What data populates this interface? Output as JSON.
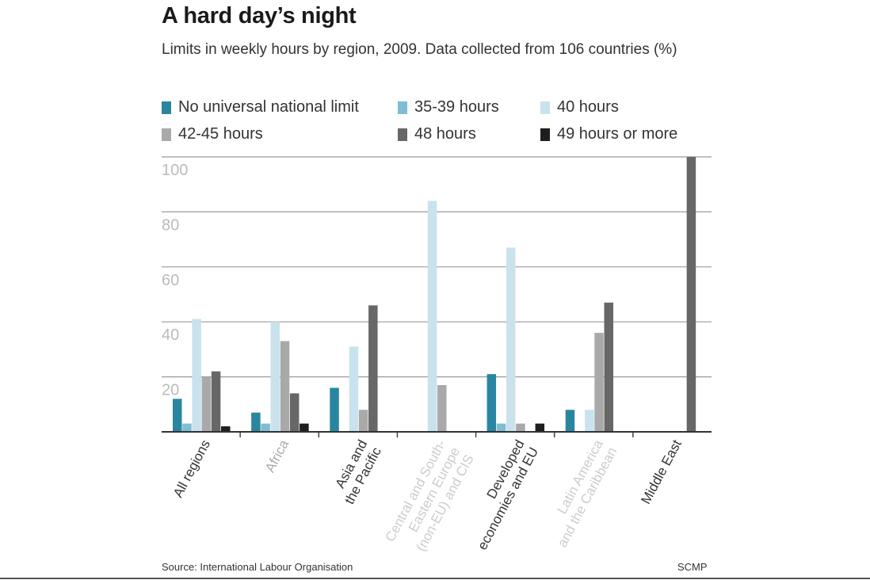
{
  "title": "A hard day’s night",
  "subtitle": "Limits in weekly hours by region, 2009. Data collected from 106 countries (%)",
  "source": "Source: International Labour Organisation",
  "credit": "SCMP",
  "chart_data": {
    "type": "bar",
    "title": "A hard day’s night",
    "subtitle": "Limits in weekly hours by region, 2009. Data collected from 106 countries (%)",
    "categories": [
      "All regions",
      "Africa",
      "Asia and\nthe Pacific",
      "Central and South-\nEastern Europe\n(non-EU) and CIS",
      "Developed\neconomies and EU",
      "Latin America\nand the Caribbean",
      "Middle East"
    ],
    "category_colors": [
      "#333333",
      "#aaaaaa",
      "#333333",
      "#cccccc",
      "#333333",
      "#cccccc",
      "#333333"
    ],
    "series": [
      {
        "name": "No universal national limit",
        "color": "#2a86a0",
        "values": [
          12,
          7,
          16,
          0,
          21,
          8,
          0
        ]
      },
      {
        "name": "35-39 hours",
        "color": "#7fbdd3",
        "values": [
          3,
          3,
          0,
          0,
          3,
          0,
          0
        ]
      },
      {
        "name": "40 hours",
        "color": "#c9e2ed",
        "values": [
          41,
          40,
          31,
          84,
          67,
          8,
          0
        ]
      },
      {
        "name": "42-45 hours",
        "color": "#a9a9a9",
        "values": [
          20,
          33,
          8,
          17,
          3,
          36,
          0
        ]
      },
      {
        "name": "48 hours",
        "color": "#676767",
        "values": [
          22,
          14,
          46,
          0,
          0,
          47,
          100
        ]
      },
      {
        "name": "49 hours or more",
        "color": "#1e1e1e",
        "values": [
          2,
          3,
          0,
          0,
          3,
          0,
          0
        ]
      }
    ],
    "xlabel": "",
    "ylabel": "",
    "ylim": [
      0,
      100
    ],
    "yticks": [
      20,
      40,
      60,
      80,
      100
    ],
    "grid": true,
    "legend_position": "top"
  }
}
